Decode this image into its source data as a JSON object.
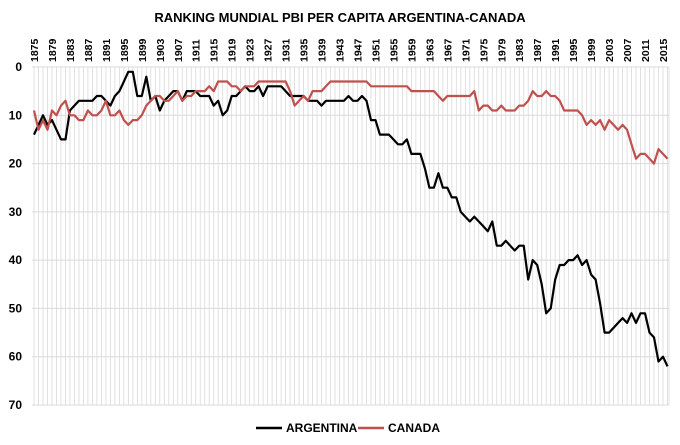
{
  "chart_data": {
    "type": "line",
    "title": "RANKING MUNDIAL PBI PER CAPITA ARGENTINA-CANADA",
    "xlabel": "",
    "ylabel": "",
    "x_start": 1875,
    "x_end": 2016,
    "x_tick_labels": [
      "1875",
      "1879",
      "1883",
      "1887",
      "1891",
      "1895",
      "1899",
      "1903",
      "1907",
      "1911",
      "1915",
      "1919",
      "1923",
      "1927",
      "1931",
      "1935",
      "1939",
      "1943",
      "1947",
      "1951",
      "1955",
      "1959",
      "1963",
      "1967",
      "1971",
      "1975",
      "1979",
      "1983",
      "1987",
      "1991",
      "1995",
      "1999",
      "2003",
      "2007",
      "2011",
      "2015"
    ],
    "y_tick_labels": [
      "0",
      "10",
      "20",
      "30",
      "40",
      "50",
      "60",
      "70"
    ],
    "ylim": [
      0,
      70
    ],
    "y_reversed": true,
    "grid": true,
    "legend_position": "bottom",
    "series": [
      {
        "name": "ARGENTINA",
        "color": "#000000",
        "values": [
          14,
          12,
          10,
          12,
          11,
          13,
          15,
          15,
          9,
          8,
          7,
          7,
          7,
          7,
          6,
          6,
          7,
          8,
          6,
          5,
          3,
          1,
          1,
          6,
          6,
          2,
          7,
          6,
          9,
          7,
          6,
          5,
          5,
          7,
          5,
          5,
          5,
          6,
          6,
          6,
          8,
          7,
          10,
          9,
          6,
          6,
          5,
          4,
          5,
          5,
          4,
          6,
          4,
          4,
          4,
          4,
          5,
          6,
          6,
          6,
          6,
          7,
          7,
          7,
          8,
          7,
          7,
          7,
          7,
          7,
          6,
          7,
          7,
          6,
          7,
          11,
          11,
          14,
          14,
          14,
          15,
          16,
          16,
          15,
          18,
          18,
          18,
          21,
          25,
          25,
          22,
          25,
          25,
          27,
          27,
          30,
          31,
          32,
          31,
          32,
          33,
          34,
          32,
          37,
          37,
          36,
          37,
          38,
          37,
          37,
          44,
          40,
          41,
          45,
          51,
          50,
          44,
          41,
          41,
          40,
          40,
          39,
          41,
          40,
          43,
          44,
          49,
          55,
          55,
          54,
          53,
          52,
          53,
          51,
          53,
          51,
          51,
          55,
          56,
          61,
          60,
          62
        ]
      },
      {
        "name": "CANADA",
        "color": "#c0504d",
        "values": [
          9,
          13,
          11,
          13,
          9,
          10,
          8,
          7,
          10,
          10,
          11,
          11,
          9,
          10,
          10,
          9,
          7,
          10,
          10,
          9,
          11,
          12,
          11,
          11,
          10,
          8,
          7,
          6,
          6,
          7,
          7,
          6,
          5,
          7,
          6,
          6,
          5,
          5,
          5,
          4,
          5,
          3,
          3,
          3,
          4,
          4,
          5,
          4,
          4,
          4,
          3,
          3,
          3,
          3,
          3,
          3,
          3,
          5,
          8,
          7,
          6,
          7,
          5,
          5,
          5,
          4,
          3,
          3,
          3,
          3,
          3,
          3,
          3,
          3,
          3,
          4,
          4,
          4,
          4,
          4,
          4,
          4,
          4,
          4,
          5,
          5,
          5,
          5,
          5,
          5,
          6,
          7,
          6,
          6,
          6,
          6,
          6,
          6,
          5,
          9,
          8,
          8,
          9,
          9,
          8,
          9,
          9,
          9,
          8,
          8,
          7,
          5,
          6,
          6,
          5,
          6,
          6,
          7,
          9,
          9,
          9,
          9,
          10,
          12,
          11,
          12,
          11,
          13,
          11,
          12,
          13,
          12,
          13,
          16,
          19,
          18,
          18,
          19,
          20,
          17,
          18,
          19
        ]
      }
    ]
  }
}
